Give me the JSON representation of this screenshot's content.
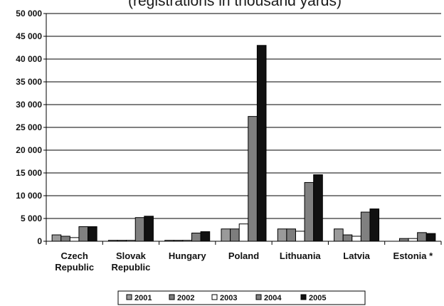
{
  "chart_data": {
    "type": "bar",
    "title": "(registrations in thousand yards)",
    "xlabel": "",
    "ylabel": "",
    "categories": [
      [
        "Czech",
        "Republic"
      ],
      [
        "Slovak",
        "Republic"
      ],
      [
        "Hungary"
      ],
      [
        "Poland"
      ],
      [
        "Lithuania"
      ],
      [
        "Latvia"
      ],
      [
        "Estonia *"
      ]
    ],
    "ylim": [
      0,
      50000
    ],
    "yticks": [
      0,
      5000,
      10000,
      15000,
      20000,
      25000,
      30000,
      35000,
      40000,
      45000,
      50000
    ],
    "ytick_labels": [
      "0",
      "5 000",
      "10 000",
      "15 000",
      "20 000",
      "25 000",
      "30 000",
      "35 000",
      "40 000",
      "45 000",
      "50 000"
    ],
    "grid": true,
    "legend_position": "bottom",
    "series": [
      {
        "name": "2001",
        "color": "#9a9a9a",
        "values": [
          1400,
          200,
          200,
          2700,
          2700,
          2700,
          0
        ]
      },
      {
        "name": "2002",
        "color": "#7d7d7d",
        "values": [
          1100,
          200,
          200,
          2700,
          2700,
          1400,
          600
        ]
      },
      {
        "name": "2003",
        "color": "#ffffff",
        "values": [
          800,
          200,
          200,
          3800,
          2200,
          1100,
          600
        ]
      },
      {
        "name": "2004",
        "color": "#808080",
        "values": [
          3200,
          5200,
          1800,
          27400,
          12900,
          6400,
          1900
        ]
      },
      {
        "name": "2005",
        "color": "#111111",
        "values": [
          3200,
          5500,
          2100,
          43000,
          14600,
          7100,
          1700
        ]
      }
    ]
  }
}
